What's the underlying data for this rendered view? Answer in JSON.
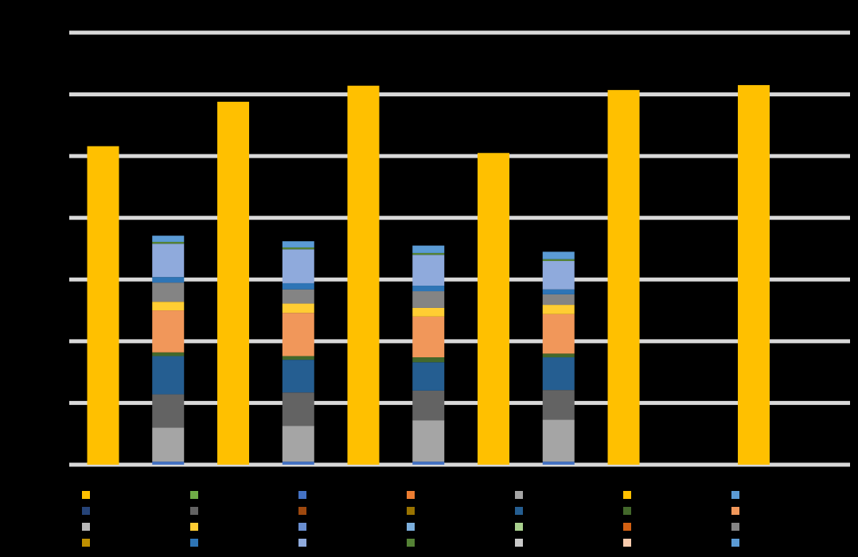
{
  "chart_data": {
    "type": "bar",
    "categories": [
      null,
      null,
      null,
      null,
      null,
      null
    ],
    "ylim": [
      0,
      70
    ],
    "yticks": [
      0,
      10,
      20,
      30,
      40,
      50,
      60,
      70
    ],
    "grid": true,
    "series": [
      {
        "color": "#ffc000",
        "stack": "a",
        "values": [
          51.6,
          58.8,
          61.4,
          50.5,
          60.7,
          61.5
        ]
      },
      {
        "color": "#70ad47",
        "stack": "b",
        "values": [
          0,
          0,
          0,
          0,
          null,
          null
        ]
      },
      {
        "color": "#4472c4",
        "stack": "b",
        "values": [
          0.5,
          0.5,
          0.5,
          0.5,
          null,
          null
        ]
      },
      {
        "color": "#ed7d31",
        "stack": "b",
        "values": [
          0,
          0,
          0,
          0,
          null,
          null
        ]
      },
      {
        "color": "#a5a5a5",
        "stack": "b",
        "values": [
          5.5,
          5.8,
          6.7,
          6.8,
          null,
          null
        ]
      },
      {
        "color": "#ffc000",
        "stack": "b",
        "values": [
          0,
          0,
          0,
          0,
          null,
          null
        ]
      },
      {
        "color": "#5b9bd5",
        "stack": "b",
        "values": [
          0,
          0,
          0,
          0,
          null,
          null
        ]
      },
      {
        "color": "#264478",
        "stack": "b",
        "values": [
          0,
          0,
          0,
          0,
          null,
          null
        ]
      },
      {
        "color": "#636363",
        "stack": "b",
        "values": [
          5.4,
          5.4,
          4.8,
          4.8,
          null,
          null
        ]
      },
      {
        "color": "#9e480e",
        "stack": "b",
        "values": [
          0,
          0,
          0,
          0,
          null,
          null
        ]
      },
      {
        "color": "#997300",
        "stack": "b",
        "values": [
          0,
          0,
          0,
          0,
          null,
          null
        ]
      },
      {
        "color": "#255e91",
        "stack": "b",
        "values": [
          6.2,
          5.3,
          4.6,
          5.3,
          null,
          null
        ]
      },
      {
        "color": "#43682b",
        "stack": "b",
        "values": [
          0.6,
          0.6,
          0.8,
          0.6,
          null,
          null
        ]
      },
      {
        "color": "#f1975a",
        "stack": "b",
        "values": [
          6.8,
          7.0,
          6.6,
          6.4,
          null,
          null
        ]
      },
      {
        "color": "#b7b7b7",
        "stack": "b",
        "values": [
          0,
          0,
          0,
          0,
          null,
          null
        ]
      },
      {
        "color": "#ffcd33",
        "stack": "b",
        "values": [
          1.4,
          1.5,
          1.4,
          1.5,
          null,
          null
        ]
      },
      {
        "color": "#698ed0",
        "stack": "b",
        "values": [
          0,
          0,
          0,
          0,
          null,
          null
        ]
      },
      {
        "color": "#7cafdd",
        "stack": "b",
        "values": [
          0,
          0,
          0,
          0,
          null,
          null
        ]
      },
      {
        "color": "#a9d18e",
        "stack": "b",
        "values": [
          0,
          0,
          0,
          0,
          null,
          null
        ]
      },
      {
        "color": "#d26012",
        "stack": "b",
        "values": [
          0,
          0,
          0,
          0,
          null,
          null
        ]
      },
      {
        "color": "#848484",
        "stack": "b",
        "values": [
          3.1,
          2.3,
          2.7,
          1.7,
          null,
          null
        ]
      },
      {
        "color": "#bf9000",
        "stack": "b",
        "values": [
          0,
          0,
          0,
          0,
          null,
          null
        ]
      },
      {
        "color": "#2e75b6",
        "stack": "b",
        "values": [
          0.9,
          1.0,
          0.9,
          0.8,
          null,
          null
        ]
      },
      {
        "color": "#8faadc",
        "stack": "b",
        "values": [
          5.4,
          5.5,
          5.0,
          4.6,
          null,
          null
        ]
      },
      {
        "color": "#548235",
        "stack": "b",
        "values": [
          0.3,
          0.3,
          0.3,
          0.3,
          null,
          null
        ]
      },
      {
        "color": "#c9c9c9",
        "stack": "b",
        "values": [
          0,
          0,
          0,
          0,
          null,
          null
        ]
      },
      {
        "color": "#f8cbad",
        "stack": "b",
        "values": [
          0,
          0,
          0,
          0,
          null,
          null
        ]
      },
      {
        "color": "#5b9bd5",
        "stack": "b",
        "values": [
          1.0,
          1.0,
          1.2,
          1.2,
          null,
          null
        ]
      }
    ]
  }
}
